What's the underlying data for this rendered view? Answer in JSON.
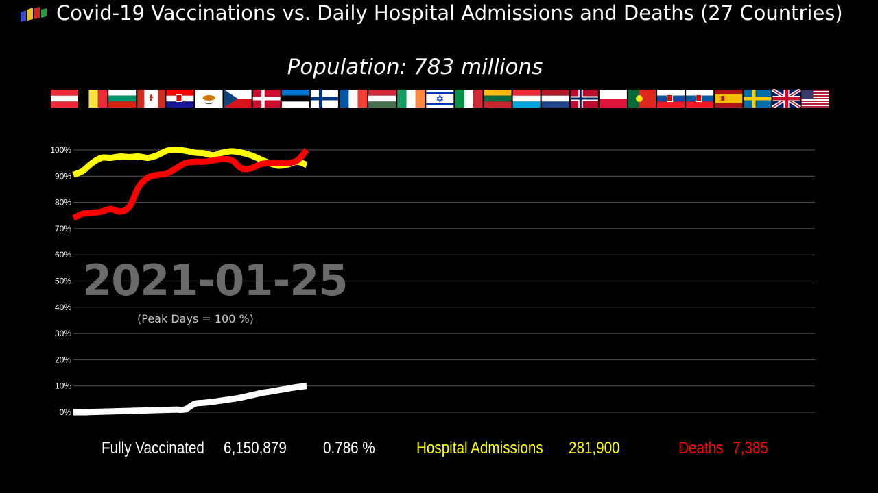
{
  "header": {
    "title": "Covid-19 Vaccinations vs. Daily Hospital Admissions and Deaths (27 Countries)",
    "subtitle": "Population: 783 millions",
    "logo_icon": "bar-chart-logo-icon",
    "flag_icons": [
      "austria-flag-icon",
      "belgium-flag-icon",
      "bulgaria-flag-icon",
      "canada-flag-icon",
      "croatia-flag-icon",
      "cyprus-flag-icon",
      "czechia-flag-icon",
      "denmark-flag-icon",
      "estonia-flag-icon",
      "finland-flag-icon",
      "france-flag-icon",
      "hungary-flag-icon",
      "ireland-flag-icon",
      "israel-flag-icon",
      "italy-flag-icon",
      "lithuania-flag-icon",
      "luxembourg-flag-icon",
      "netherlands-flag-icon",
      "norway-flag-icon",
      "poland-flag-icon",
      "portugal-flag-icon",
      "slovakia-flag-icon",
      "slovenia-flag-icon",
      "spain-flag-icon",
      "sweden-flag-icon",
      "uk-flag-icon",
      "usa-flag-icon"
    ]
  },
  "overlay": {
    "date": "2021-01-25",
    "peak_note": "(Peak Days = 100 %)"
  },
  "stats": {
    "vaccinated_label": "Fully Vaccinated",
    "vaccinated_value": "6,150,879",
    "vaccinated_pct": "0.786 %",
    "hospital_label": "Hospital Admissions",
    "hospital_value": "281,900",
    "deaths_label": "Deaths",
    "deaths_value": "7,385"
  },
  "colors": {
    "vaccinated": "#ffffff",
    "hospital": "#ffff00",
    "deaths": "#ff0000",
    "grid": "#555555",
    "background": "#000000"
  },
  "chart_data": {
    "type": "line",
    "yticks": [
      "100%",
      "90%",
      "80%",
      "70%",
      "60%",
      "50%",
      "40%",
      "30%",
      "20%",
      "10%",
      "0%"
    ],
    "ylim": [
      0,
      100
    ],
    "grid": true,
    "x_progress": [
      0,
      4,
      8,
      12,
      16,
      20,
      24,
      28,
      32,
      36,
      40,
      44,
      48,
      52,
      56,
      60,
      64,
      68,
      72,
      76,
      80,
      84,
      88,
      92,
      96,
      100
    ],
    "series": [
      {
        "name": "Hospital Admissions",
        "color": "#ffff00",
        "values": [
          90.5,
          92,
          95,
          97,
          97,
          97.5,
          97.3,
          97.5,
          97,
          98,
          99.7,
          100,
          99.7,
          99,
          98.7,
          98,
          99,
          99.5,
          99,
          98,
          96.5,
          95,
          94,
          94.5,
          95.5,
          94.3
        ]
      },
      {
        "name": "Deaths",
        "color": "#ff0000",
        "values": [
          74,
          75.7,
          76,
          76.5,
          77.5,
          76.5,
          78.5,
          86,
          89.5,
          90.5,
          91,
          93,
          95,
          95.5,
          95.5,
          96,
          96.5,
          96,
          93,
          93,
          94.5,
          95,
          95,
          95,
          96,
          100
        ]
      },
      {
        "name": "Fully Vaccinated",
        "color": "#ffffff",
        "values": [
          0,
          0,
          0.1,
          0.2,
          0.3,
          0.4,
          0.5,
          0.6,
          0.7,
          0.8,
          0.9,
          1,
          1.1,
          3.2,
          3.6,
          4,
          4.5,
          5,
          5.6,
          6.4,
          7.2,
          7.8,
          8.4,
          9,
          9.6,
          10
        ]
      }
    ]
  }
}
